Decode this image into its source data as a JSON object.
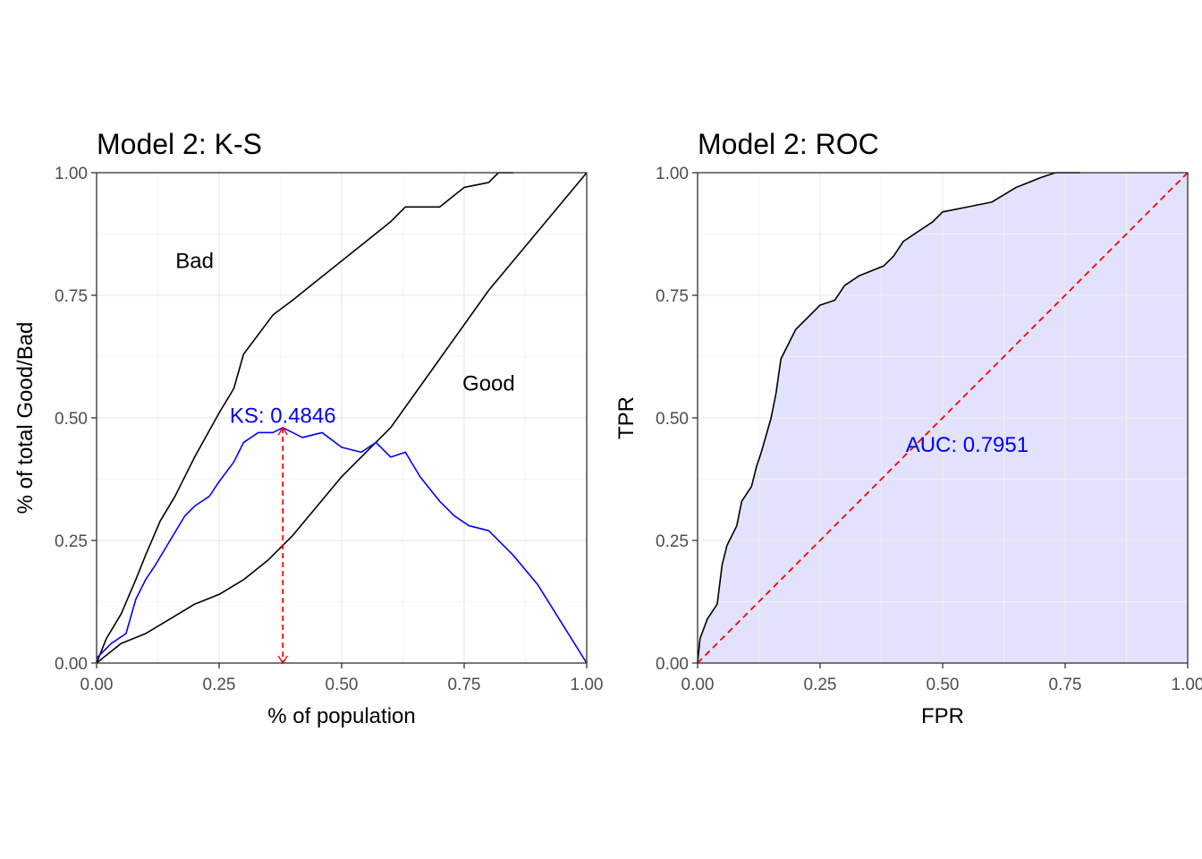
{
  "colors": {
    "ks_curve": "#0000ff",
    "ks_marker": "#ff0000",
    "roc_fill": "#e2e2fc",
    "diagonal": "#ff0000",
    "annotation": "#0000ff",
    "line": "#000000"
  },
  "chart_data": [
    {
      "type": "line",
      "title": "Model 2: K-S",
      "xlabel": "% of population",
      "ylabel": "% of total Good/Bad",
      "xlim": [
        0,
        1
      ],
      "ylim": [
        0,
        1
      ],
      "x_ticks": [
        "0.00",
        "0.25",
        "0.50",
        "0.75",
        "1.00"
      ],
      "y_ticks": [
        "0.00",
        "0.25",
        "0.50",
        "0.75",
        "1.00"
      ],
      "grid": true,
      "legend": "none",
      "series": [
        {
          "name": "Bad",
          "points": [
            [
              0,
              0
            ],
            [
              0.02,
              0.05
            ],
            [
              0.05,
              0.1
            ],
            [
              0.08,
              0.17
            ],
            [
              0.1,
              0.22
            ],
            [
              0.13,
              0.29
            ],
            [
              0.16,
              0.34
            ],
            [
              0.2,
              0.42
            ],
            [
              0.25,
              0.51
            ],
            [
              0.28,
              0.56
            ],
            [
              0.3,
              0.63
            ],
            [
              0.33,
              0.67
            ],
            [
              0.36,
              0.71
            ],
            [
              0.4,
              0.74
            ],
            [
              0.45,
              0.78
            ],
            [
              0.5,
              0.82
            ],
            [
              0.55,
              0.86
            ],
            [
              0.6,
              0.9
            ],
            [
              0.63,
              0.93
            ],
            [
              0.7,
              0.93
            ],
            [
              0.75,
              0.97
            ],
            [
              0.8,
              0.98
            ],
            [
              0.82,
              1.0
            ],
            [
              0.85,
              1.0
            ]
          ]
        },
        {
          "name": "Good",
          "points": [
            [
              0,
              0
            ],
            [
              0.05,
              0.04
            ],
            [
              0.1,
              0.06
            ],
            [
              0.15,
              0.09
            ],
            [
              0.2,
              0.12
            ],
            [
              0.25,
              0.14
            ],
            [
              0.3,
              0.17
            ],
            [
              0.35,
              0.21
            ],
            [
              0.4,
              0.26
            ],
            [
              0.45,
              0.32
            ],
            [
              0.5,
              0.38
            ],
            [
              0.55,
              0.43
            ],
            [
              0.6,
              0.48
            ],
            [
              0.65,
              0.55
            ],
            [
              0.7,
              0.62
            ],
            [
              0.75,
              0.69
            ],
            [
              0.8,
              0.76
            ],
            [
              0.85,
              0.82
            ],
            [
              0.9,
              0.88
            ],
            [
              0.95,
              0.94
            ],
            [
              1.0,
              1.0
            ]
          ]
        },
        {
          "name": "KS",
          "points": [
            [
              0,
              0.01
            ],
            [
              0.03,
              0.04
            ],
            [
              0.06,
              0.06
            ],
            [
              0.08,
              0.13
            ],
            [
              0.1,
              0.17
            ],
            [
              0.12,
              0.2
            ],
            [
              0.15,
              0.25
            ],
            [
              0.18,
              0.3
            ],
            [
              0.2,
              0.32
            ],
            [
              0.23,
              0.34
            ],
            [
              0.25,
              0.37
            ],
            [
              0.28,
              0.41
            ],
            [
              0.3,
              0.45
            ],
            [
              0.33,
              0.47
            ],
            [
              0.36,
              0.47
            ],
            [
              0.38,
              0.48
            ],
            [
              0.42,
              0.46
            ],
            [
              0.46,
              0.47
            ],
            [
              0.5,
              0.44
            ],
            [
              0.54,
              0.43
            ],
            [
              0.57,
              0.45
            ],
            [
              0.6,
              0.42
            ],
            [
              0.63,
              0.43
            ],
            [
              0.66,
              0.38
            ],
            [
              0.7,
              0.33
            ],
            [
              0.73,
              0.3
            ],
            [
              0.76,
              0.28
            ],
            [
              0.8,
              0.27
            ],
            [
              0.85,
              0.22
            ],
            [
              0.9,
              0.16
            ],
            [
              0.95,
              0.08
            ],
            [
              1.0,
              0.0
            ]
          ]
        }
      ],
      "annotations": [
        {
          "text": "Bad",
          "x": 0.2,
          "y": 0.82
        },
        {
          "text": "Good",
          "x": 0.8,
          "y": 0.57
        },
        {
          "text": "KS: 0.4846",
          "x": 0.38,
          "y": 0.505
        }
      ],
      "ks_marker": {
        "x": 0.38,
        "y_from": 0.48,
        "y_to": 0
      }
    },
    {
      "type": "area",
      "title": "Model 2: ROC",
      "xlabel": "FPR",
      "ylabel": "TPR",
      "xlim": [
        0,
        1
      ],
      "ylim": [
        0,
        1
      ],
      "x_ticks": [
        "0.00",
        "0.25",
        "0.50",
        "0.75",
        "1.00"
      ],
      "y_ticks": [
        "0.00",
        "0.25",
        "0.50",
        "0.75",
        "1.00"
      ],
      "grid": true,
      "legend": "none",
      "series": [
        {
          "name": "ROC",
          "points": [
            [
              0,
              0
            ],
            [
              0.005,
              0.05
            ],
            [
              0.02,
              0.09
            ],
            [
              0.04,
              0.12
            ],
            [
              0.05,
              0.2
            ],
            [
              0.06,
              0.24
            ],
            [
              0.08,
              0.28
            ],
            [
              0.09,
              0.33
            ],
            [
              0.11,
              0.36
            ],
            [
              0.12,
              0.4
            ],
            [
              0.13,
              0.43
            ],
            [
              0.15,
              0.5
            ],
            [
              0.16,
              0.55
            ],
            [
              0.17,
              0.62
            ],
            [
              0.18,
              0.64
            ],
            [
              0.2,
              0.68
            ],
            [
              0.23,
              0.71
            ],
            [
              0.25,
              0.73
            ],
            [
              0.28,
              0.74
            ],
            [
              0.3,
              0.77
            ],
            [
              0.33,
              0.79
            ],
            [
              0.38,
              0.81
            ],
            [
              0.4,
              0.83
            ],
            [
              0.42,
              0.86
            ],
            [
              0.45,
              0.88
            ],
            [
              0.48,
              0.9
            ],
            [
              0.5,
              0.92
            ],
            [
              0.55,
              0.93
            ],
            [
              0.6,
              0.94
            ],
            [
              0.65,
              0.97
            ],
            [
              0.7,
              0.99
            ],
            [
              0.73,
              1.0
            ],
            [
              0.78,
              1.0
            ]
          ]
        }
      ],
      "diagonal": [
        [
          0,
          0
        ],
        [
          1,
          1
        ]
      ],
      "annotations": [
        {
          "text": "AUC: 0.7951",
          "x": 0.55,
          "y": 0.445
        }
      ]
    }
  ]
}
